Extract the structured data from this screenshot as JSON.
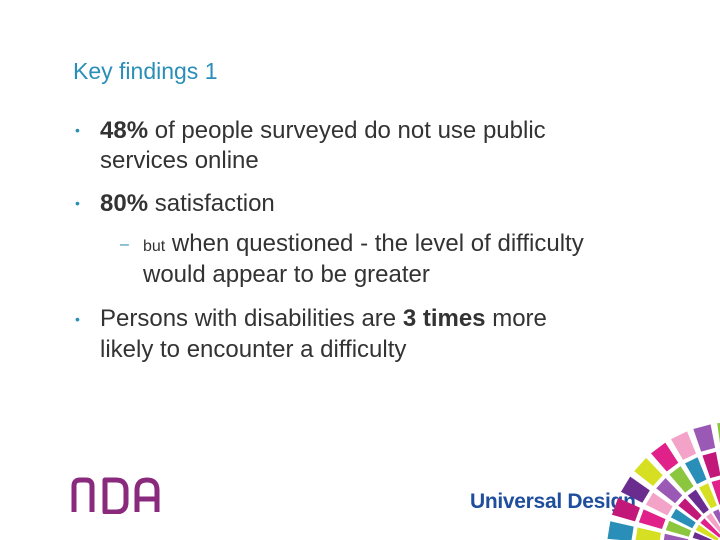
{
  "slide": {
    "title": "Key findings 1",
    "b1": {
      "bold": "48%",
      "rest": " of people surveyed do not use public",
      "cont": "services online"
    },
    "b2": {
      "bold": "80%",
      "rest": " satisfaction"
    },
    "sub": {
      "small": "but",
      "rest": " when questioned  - the level of difficulty",
      "cont": "would appear to be greater"
    },
    "b3": {
      "pre": "Persons with disabilities are ",
      "bold": "3 times",
      "post": " more",
      "cont": "likely to encounter a difficulty"
    }
  },
  "footer": {
    "logo_text": "NDA",
    "tagline": "Universal Design"
  },
  "colors": {
    "accent": "#2a8fb8",
    "text": "#333333",
    "logo": "#8a2a7c",
    "brand_blue": "#1f4e9c"
  }
}
